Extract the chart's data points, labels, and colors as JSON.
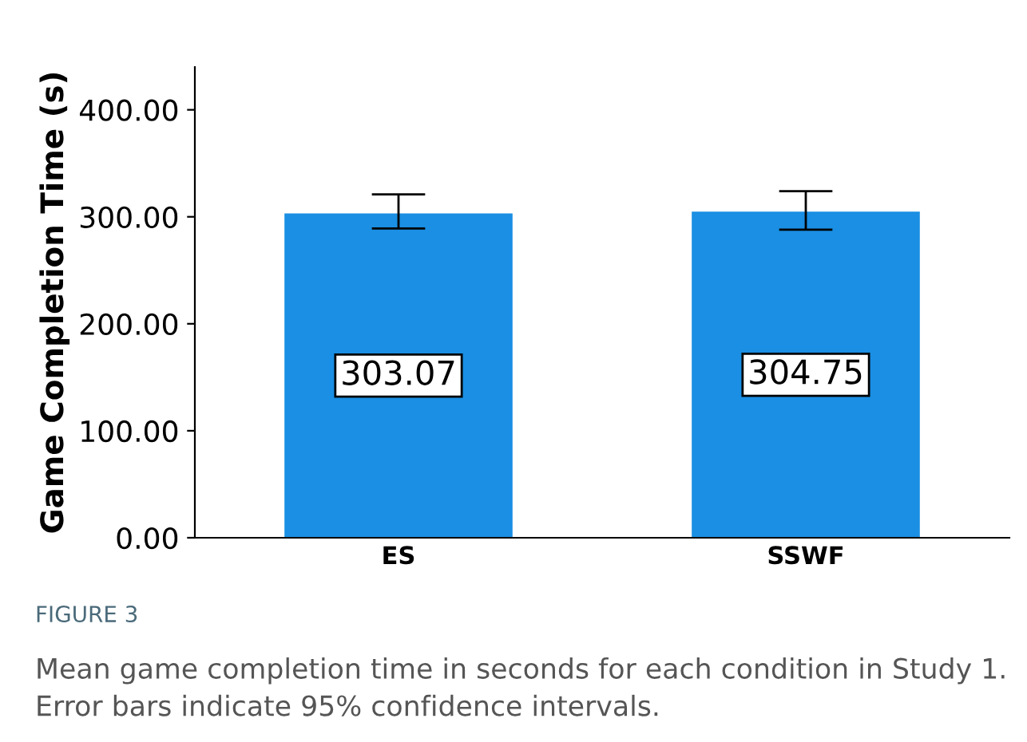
{
  "chart_data": {
    "type": "bar",
    "ylabel": "Game Completion Time (s)",
    "categories": [
      "ES",
      "SSWF"
    ],
    "values": [
      303.07,
      304.75
    ],
    "errors": [
      [
        289,
        321
      ],
      [
        288,
        324
      ]
    ],
    "value_labels": [
      "303.07",
      "304.75"
    ],
    "color": "#1a8fe3",
    "ylim": [
      0,
      440
    ],
    "yticks": [
      {
        "value": 0,
        "label": "0.00"
      },
      {
        "value": 100,
        "label": "100.00"
      },
      {
        "value": 200,
        "label": "200.00"
      },
      {
        "value": 300,
        "label": "300.00"
      },
      {
        "value": 400,
        "label": "400.00"
      }
    ],
    "grid": false,
    "annotations": [
      "FIGURE 3",
      "Mean game completion time in seconds for each condition in Study 1. Error bars indicate 95% confidence intervals."
    ]
  }
}
